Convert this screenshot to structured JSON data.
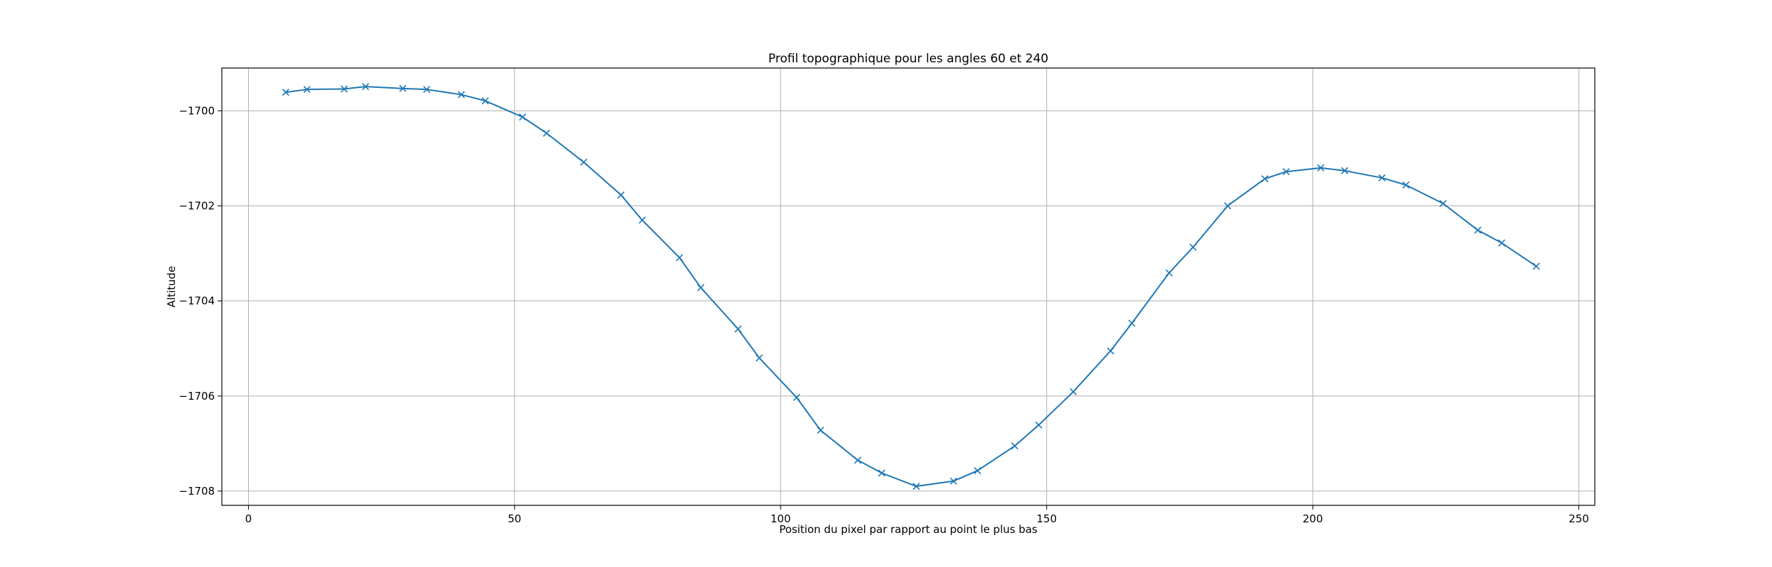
{
  "chart_data": {
    "type": "line",
    "title": "Profil topographique pour les angles 60 et 240",
    "xlabel": "Position du pixel par rapport au point le plus bas",
    "ylabel": "Altitude",
    "xlim": [
      -5,
      253
    ],
    "ylim": [
      -1708.3,
      -1699.1
    ],
    "xticks": [
      0,
      50,
      100,
      150,
      200,
      250
    ],
    "yticks": [
      -1708,
      -1706,
      -1704,
      -1702,
      -1700
    ],
    "xtick_labels": [
      "0",
      "50",
      "100",
      "150",
      "200",
      "250"
    ],
    "ytick_labels": [
      "−1708",
      "−1706",
      "−1704",
      "−1702",
      "−1700"
    ],
    "grid": true,
    "marker": "x",
    "color": "#1f77b4",
    "series": [
      {
        "x": [
          7,
          11,
          18,
          22,
          29,
          33.5,
          40,
          44.5,
          51.5,
          56,
          63,
          70,
          74,
          81,
          85,
          92,
          96,
          103,
          107.5,
          114.5,
          119,
          125.5,
          132.5,
          137,
          144,
          148.5,
          155,
          162,
          166,
          173,
          177.5,
          184,
          191,
          195,
          201.5,
          206,
          213,
          217.5,
          224.5,
          231,
          235.5,
          242
        ],
        "y": [
          -1699.61,
          -1699.55,
          -1699.54,
          -1699.49,
          -1699.53,
          -1699.55,
          -1699.66,
          -1699.79,
          -1700.13,
          -1700.47,
          -1701.08,
          -1701.77,
          -1702.3,
          -1703.09,
          -1703.72,
          -1704.59,
          -1705.2,
          -1706.03,
          -1706.72,
          -1707.35,
          -1707.62,
          -1707.9,
          -1707.79,
          -1707.57,
          -1707.05,
          -1706.61,
          -1705.91,
          -1705.05,
          -1704.47,
          -1703.41,
          -1702.87,
          -1702.0,
          -1701.43,
          -1701.28,
          -1701.2,
          -1701.26,
          -1701.41,
          -1701.56,
          -1701.95,
          -1702.51,
          -1702.78,
          -1703.27
        ]
      }
    ]
  }
}
